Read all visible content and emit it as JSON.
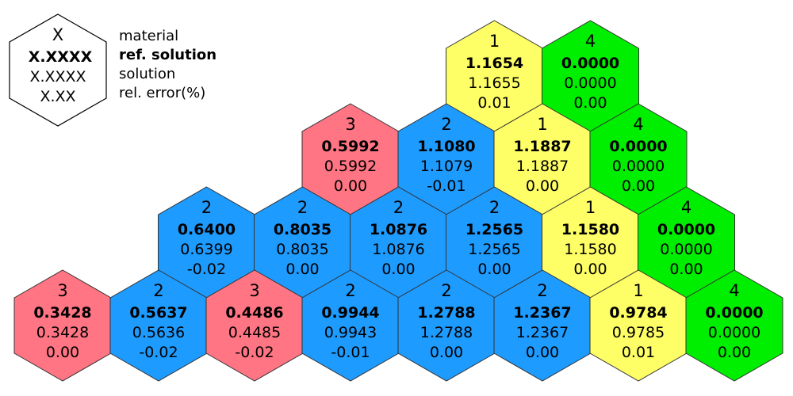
{
  "colors": {
    "1": "#fefe66",
    "2": "#1e9bff",
    "3": "#ff7583",
    "4": "#00ee00",
    "legend": "#ffffff",
    "stroke": "#333333"
  },
  "legend": {
    "hex_lines": [
      "X",
      "X.XXXX",
      "X.XXXX",
      "X.XX"
    ],
    "labels": [
      "material",
      "ref. solution",
      "solution",
      "rel. error(%)"
    ]
  },
  "rows": [
    [
      {
        "material": "1",
        "ref": "1.1654",
        "solution": "1.1655",
        "error": "0.01"
      },
      {
        "material": "4",
        "ref": "0.0000",
        "solution": "0.0000",
        "error": "0.00"
      }
    ],
    [
      {
        "material": "3",
        "ref": "0.5992",
        "solution": "0.5992",
        "error": "0.00"
      },
      {
        "material": "2",
        "ref": "1.1080",
        "solution": "1.1079",
        "error": "-0.01"
      },
      {
        "material": "1",
        "ref": "1.1887",
        "solution": "1.1887",
        "error": "0.00"
      },
      {
        "material": "4",
        "ref": "0.0000",
        "solution": "0.0000",
        "error": "0.00"
      }
    ],
    [
      {
        "material": "2",
        "ref": "0.6400",
        "solution": "0.6399",
        "error": "-0.02"
      },
      {
        "material": "2",
        "ref": "0.8035",
        "solution": "0.8035",
        "error": "0.00"
      },
      {
        "material": "2",
        "ref": "1.0876",
        "solution": "1.0876",
        "error": "0.00"
      },
      {
        "material": "2",
        "ref": "1.2565",
        "solution": "1.2565",
        "error": "0.00"
      },
      {
        "material": "1",
        "ref": "1.1580",
        "solution": "1.1580",
        "error": "0.00"
      },
      {
        "material": "4",
        "ref": "0.0000",
        "solution": "0.0000",
        "error": "0.00"
      }
    ],
    [
      {
        "material": "3",
        "ref": "0.3428",
        "solution": "0.3428",
        "error": "0.00"
      },
      {
        "material": "2",
        "ref": "0.5637",
        "solution": "0.5636",
        "error": "-0.02"
      },
      {
        "material": "3",
        "ref": "0.4486",
        "solution": "0.4485",
        "error": "-0.02"
      },
      {
        "material": "2",
        "ref": "0.9944",
        "solution": "0.9943",
        "error": "-0.01"
      },
      {
        "material": "2",
        "ref": "1.2788",
        "solution": "1.2788",
        "error": "0.00"
      },
      {
        "material": "2",
        "ref": "1.2367",
        "solution": "1.2367",
        "error": "0.00"
      },
      {
        "material": "1",
        "ref": "0.9784",
        "solution": "0.9785",
        "error": "0.01"
      },
      {
        "material": "4",
        "ref": "0.0000",
        "solution": "0.0000",
        "error": "0.00"
      }
    ]
  ]
}
